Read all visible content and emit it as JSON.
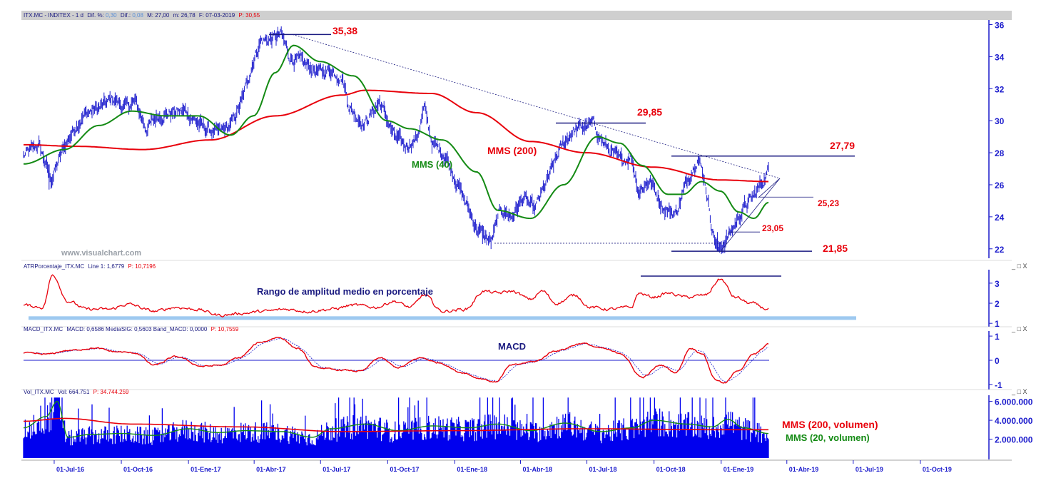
{
  "header": {
    "symbol_text": "ITX.MC - INDITEX - 1 d",
    "dif_pct_label": "Dif. %:",
    "dif_pct_value": "0,30",
    "dif_label": "Dif.:",
    "dif_value": "0,08",
    "max_text": "M: 27,00",
    "min_text": "m: 26,78",
    "date_text": "F: 07-03-2019",
    "price_label": "P: 30,55"
  },
  "watermark": "www.visualchart.com",
  "panels": {
    "atr_header_name": "ATRPorcentaje_ITX.MC",
    "atr_header_line": "Line 1: 1,6779",
    "atr_header_p": "P: 10,7196",
    "macd_header_name": "MACD_ITX.MC",
    "macd_header_vals": "MACD: 0,6586 MediaSIG: 0,5603 Band_MACD: 0,0000",
    "macd_header_p": "P: 10,7559",
    "vol_header_name": "Vol_ITX.MC",
    "vol_header_vals": "Vol: 664.751",
    "vol_header_p": "P: 34.744.259",
    "window_buttons": "_ □ X"
  },
  "annotations": {
    "high_label": "35,38",
    "mid_high_label": "29,85",
    "recent_high_label": "27,79",
    "support_label": "25,23",
    "low_mid_label": "23,05",
    "low_label": "21,85",
    "mms200": "MMS (200)",
    "mms40": "MMS (40)",
    "atr_title": "Rango de amplitud medio en porcentaje",
    "macd_title": "MACD",
    "vol_mms200": "MMS (200, volumen)",
    "vol_mms20": "MMS (20, volumen)"
  },
  "colors": {
    "price": "#1a1acc",
    "ma200": "#e8000b",
    "ma40": "#138a13",
    "volume": "#0000ee",
    "axis": "#1a1acc",
    "highlight_bar": "#9ec9f0"
  },
  "chart_data": {
    "type": "line",
    "x_axis_labels": [
      "01-Jul-16",
      "01-Oct-16",
      "01-Ene-17",
      "01-Abr-17",
      "01-Jul-17",
      "01-Oct-17",
      "01-Ene-18",
      "01-Abr-18",
      "01-Jul-18",
      "01-Oct-18",
      "01-Ene-19",
      "01-Abr-19",
      "01-Jul-19",
      "01-Oct-19"
    ],
    "main": {
      "ylim": [
        21.5,
        36.2
      ],
      "y_ticks": [
        22,
        24,
        26,
        28,
        30,
        32,
        34,
        36
      ],
      "price_anchors": [
        [
          "2016-05-20",
          27.8
        ],
        [
          "2016-06-10",
          28.5
        ],
        [
          "2016-06-27",
          26.3
        ],
        [
          "2016-07-15",
          28.4
        ],
        [
          "2016-08-01",
          29.8
        ],
        [
          "2016-08-15",
          30.5
        ],
        [
          "2016-09-01",
          30.8
        ],
        [
          "2016-09-20",
          31.4
        ],
        [
          "2016-10-05",
          30.8
        ],
        [
          "2016-10-20",
          31.2
        ],
        [
          "2016-11-04",
          29.5
        ],
        [
          "2016-11-20",
          30.3
        ],
        [
          "2016-12-10",
          30.5
        ],
        [
          "2016-12-28",
          30.6
        ],
        [
          "2017-01-20",
          29.6
        ],
        [
          "2017-02-10",
          29.2
        ],
        [
          "2017-02-28",
          29.7
        ],
        [
          "2017-03-15",
          31.2
        ],
        [
          "2017-03-31",
          33.8
        ],
        [
          "2017-04-10",
          35.0
        ],
        [
          "2017-04-25",
          35.1
        ],
        [
          "2017-05-08",
          35.38
        ],
        [
          "2017-05-20",
          34.0
        ],
        [
          "2017-06-10",
          33.5
        ],
        [
          "2017-06-30",
          33.0
        ],
        [
          "2017-07-15",
          33.2
        ],
        [
          "2017-07-31",
          32.7
        ],
        [
          "2017-08-10",
          30.8
        ],
        [
          "2017-08-30",
          29.8
        ],
        [
          "2017-09-20",
          31.2
        ],
        [
          "2017-10-10",
          29.0
        ],
        [
          "2017-10-25",
          28.4
        ],
        [
          "2017-11-10",
          28.9
        ],
        [
          "2017-11-20",
          30.8
        ],
        [
          "2017-12-01",
          28.6
        ],
        [
          "2017-12-20",
          27.8
        ],
        [
          "2018-01-10",
          25.5
        ],
        [
          "2018-02-01",
          23.2
        ],
        [
          "2018-02-20",
          22.4
        ],
        [
          "2018-03-05",
          24.5
        ],
        [
          "2018-03-20",
          24.0
        ],
        [
          "2018-04-05",
          25.2
        ],
        [
          "2018-04-20",
          24.4
        ],
        [
          "2018-05-10",
          26.5
        ],
        [
          "2018-05-25",
          28.2
        ],
        [
          "2018-06-10",
          29.3
        ],
        [
          "2018-06-25",
          29.6
        ],
        [
          "2018-07-10",
          29.8
        ],
        [
          "2018-07-25",
          28.5
        ],
        [
          "2018-08-15",
          27.5
        ],
        [
          "2018-08-31",
          27.8
        ],
        [
          "2018-09-10",
          25.6
        ],
        [
          "2018-09-25",
          26.3
        ],
        [
          "2018-10-15",
          24.5
        ],
        [
          "2018-10-31",
          24.2
        ],
        [
          "2018-11-15",
          26.2
        ],
        [
          "2018-11-30",
          27.79
        ],
        [
          "2018-12-10",
          26.2
        ],
        [
          "2018-12-20",
          23.2
        ],
        [
          "2018-12-28",
          21.85
        ],
        [
          "2019-01-15",
          23.1
        ],
        [
          "2019-01-31",
          24.5
        ],
        [
          "2019-02-15",
          25.3
        ],
        [
          "2019-03-01",
          26.4
        ],
        [
          "2019-03-07",
          26.9
        ]
      ],
      "mma40_anchors": [
        [
          "2016-05-20",
          27.3
        ],
        [
          "2016-07-15",
          28.2
        ],
        [
          "2016-08-31",
          29.7
        ],
        [
          "2016-10-15",
          30.6
        ],
        [
          "2016-12-01",
          30.3
        ],
        [
          "2017-01-15",
          30.3
        ],
        [
          "2017-02-28",
          29.1
        ],
        [
          "2017-03-31",
          30.3
        ],
        [
          "2017-04-30",
          33.0
        ],
        [
          "2017-05-25",
          34.7
        ],
        [
          "2017-06-30",
          33.7
        ],
        [
          "2017-08-15",
          32.8
        ],
        [
          "2017-09-30",
          30.0
        ],
        [
          "2017-10-31",
          29.5
        ],
        [
          "2017-12-15",
          28.8
        ],
        [
          "2018-01-31",
          26.8
        ],
        [
          "2018-03-01",
          24.4
        ],
        [
          "2018-04-15",
          23.9
        ],
        [
          "2018-05-30",
          26.0
        ],
        [
          "2018-07-15",
          29.0
        ],
        [
          "2018-08-15",
          28.6
        ],
        [
          "2018-09-15",
          27.2
        ],
        [
          "2018-10-20",
          25.4
        ],
        [
          "2018-11-10",
          25.4
        ],
        [
          "2018-12-05",
          26.2
        ],
        [
          "2018-12-31",
          25.6
        ],
        [
          "2019-01-25",
          24.3
        ],
        [
          "2019-02-15",
          23.9
        ],
        [
          "2019-03-07",
          24.9
        ]
      ],
      "mma200_anchors": [
        [
          "2016-05-20",
          28.5
        ],
        [
          "2016-08-01",
          28.4
        ],
        [
          "2016-10-31",
          28.2
        ],
        [
          "2017-01-31",
          28.8
        ],
        [
          "2017-04-30",
          30.3
        ],
        [
          "2017-07-31",
          31.6
        ],
        [
          "2017-08-31",
          31.9
        ],
        [
          "2017-11-30",
          31.7
        ],
        [
          "2018-01-31",
          30.5
        ],
        [
          "2018-04-15",
          28.7
        ],
        [
          "2018-06-30",
          28.0
        ],
        [
          "2018-09-30",
          27.1
        ],
        [
          "2018-12-31",
          26.3
        ],
        [
          "2019-03-07",
          26.2
        ]
      ]
    },
    "atr": {
      "ylim": [
        0.9,
        3.6
      ],
      "y_ticks": [
        1,
        2,
        3
      ],
      "anchors": [
        [
          "2016-05-20",
          1.9
        ],
        [
          "2016-06-15",
          1.8
        ],
        [
          "2016-06-29",
          3.4
        ],
        [
          "2016-07-20",
          2.1
        ],
        [
          "2016-08-15",
          1.7
        ],
        [
          "2016-09-15",
          1.7
        ],
        [
          "2016-10-10",
          1.95
        ],
        [
          "2016-11-15",
          1.6
        ],
        [
          "2016-12-15",
          1.8
        ],
        [
          "2017-01-10",
          1.7
        ],
        [
          "2017-02-15",
          1.4
        ],
        [
          "2017-03-15",
          1.5
        ],
        [
          "2017-04-15",
          1.6
        ],
        [
          "2017-05-15",
          1.7
        ],
        [
          "2017-06-15",
          1.6
        ],
        [
          "2017-07-15",
          1.7
        ],
        [
          "2017-08-15",
          1.9
        ],
        [
          "2017-09-15",
          1.8
        ],
        [
          "2017-10-10",
          2.1
        ],
        [
          "2017-11-01",
          1.8
        ],
        [
          "2017-11-20",
          2.4
        ],
        [
          "2017-12-15",
          1.6
        ],
        [
          "2018-01-15",
          1.7
        ],
        [
          "2018-02-10",
          2.6
        ],
        [
          "2018-03-01",
          2.5
        ],
        [
          "2018-03-20",
          2.6
        ],
        [
          "2018-04-15",
          2.2
        ],
        [
          "2018-05-01",
          2.6
        ],
        [
          "2018-05-20",
          2.0
        ],
        [
          "2018-06-15",
          2.4
        ],
        [
          "2018-07-05",
          1.8
        ],
        [
          "2018-08-01",
          1.7
        ],
        [
          "2018-08-31",
          1.8
        ],
        [
          "2018-09-10",
          2.5
        ],
        [
          "2018-09-30",
          2.3
        ],
        [
          "2018-10-20",
          2.5
        ],
        [
          "2018-11-15",
          2.3
        ],
        [
          "2018-12-10",
          2.4
        ],
        [
          "2018-12-31",
          3.2
        ],
        [
          "2019-01-20",
          2.3
        ],
        [
          "2019-02-10",
          2.0
        ],
        [
          "2019-03-07",
          1.7
        ]
      ]
    },
    "macd": {
      "ylim": [
        -1.15,
        1.15
      ],
      "y_ticks": [
        -1,
        0,
        1
      ],
      "anchors": [
        [
          "2016-05-20",
          0.3
        ],
        [
          "2016-06-20",
          0.25
        ],
        [
          "2016-07-20",
          0.4
        ],
        [
          "2016-08-25",
          0.5
        ],
        [
          "2016-09-25",
          0.35
        ],
        [
          "2016-10-20",
          0.3
        ],
        [
          "2016-11-15",
          -0.2
        ],
        [
          "2016-12-15",
          0.15
        ],
        [
          "2017-01-20",
          -0.25
        ],
        [
          "2017-02-15",
          -0.2
        ],
        [
          "2017-03-10",
          0.1
        ],
        [
          "2017-04-10",
          0.75
        ],
        [
          "2017-05-05",
          0.95
        ],
        [
          "2017-05-30",
          0.5
        ],
        [
          "2017-06-25",
          -0.3
        ],
        [
          "2017-07-25",
          -0.4
        ],
        [
          "2017-08-25",
          -0.45
        ],
        [
          "2017-09-20",
          0.1
        ],
        [
          "2017-10-15",
          -0.3
        ],
        [
          "2017-11-15",
          0.1
        ],
        [
          "2017-12-10",
          -0.1
        ],
        [
          "2018-01-10",
          -0.5
        ],
        [
          "2018-02-05",
          -0.75
        ],
        [
          "2018-02-25",
          -0.9
        ],
        [
          "2018-03-20",
          -0.2
        ],
        [
          "2018-04-20",
          -0.05
        ],
        [
          "2018-05-20",
          0.4
        ],
        [
          "2018-06-25",
          0.7
        ],
        [
          "2018-07-20",
          0.5
        ],
        [
          "2018-08-15",
          0.3
        ],
        [
          "2018-09-15",
          -0.7
        ],
        [
          "2018-10-10",
          -0.2
        ],
        [
          "2018-10-31",
          -0.5
        ],
        [
          "2018-11-20",
          0.5
        ],
        [
          "2018-12-05",
          0.3
        ],
        [
          "2018-12-25",
          -0.8
        ],
        [
          "2019-01-05",
          -0.95
        ],
        [
          "2019-01-25",
          -0.4
        ],
        [
          "2019-02-15",
          0.25
        ],
        [
          "2019-03-07",
          0.66
        ]
      ]
    },
    "volume": {
      "ylim": [
        0,
        6500000
      ],
      "y_ticks": [
        2000000,
        4000000,
        6000000
      ],
      "y_tick_labels": [
        "2.000.000",
        "4.000.000",
        "6.000.000"
      ],
      "ma20_anchors": [
        [
          "2016-05-20",
          3200000
        ],
        [
          "2016-06-20",
          4400000
        ],
        [
          "2016-07-05",
          6000000
        ],
        [
          "2016-07-20",
          2200000
        ],
        [
          "2016-08-20",
          2500000
        ],
        [
          "2016-10-01",
          2600000
        ],
        [
          "2016-11-15",
          2400000
        ],
        [
          "2017-01-01",
          3100000
        ],
        [
          "2017-02-10",
          2700000
        ],
        [
          "2017-03-20",
          2900000
        ],
        [
          "2017-05-10",
          2800000
        ],
        [
          "2017-06-20",
          2200000
        ],
        [
          "2017-07-15",
          3100000
        ],
        [
          "2017-09-01",
          3600000
        ],
        [
          "2017-10-15",
          2900000
        ],
        [
          "2017-12-01",
          3400000
        ],
        [
          "2018-01-20",
          3200000
        ],
        [
          "2018-03-01",
          3600000
        ],
        [
          "2018-04-15",
          2900000
        ],
        [
          "2018-06-01",
          3700000
        ],
        [
          "2018-07-20",
          2800000
        ],
        [
          "2018-09-01",
          3200000
        ],
        [
          "2018-10-01",
          4000000
        ],
        [
          "2018-11-15",
          3600000
        ],
        [
          "2018-12-20",
          3300000
        ],
        [
          "2019-01-10",
          4100000
        ],
        [
          "2019-02-01",
          3200000
        ],
        [
          "2019-03-07",
          2600000
        ]
      ],
      "ma200_anchors": [
        [
          "2016-05-20",
          3900000
        ],
        [
          "2016-07-15",
          4200000
        ],
        [
          "2016-10-15",
          3600000
        ],
        [
          "2017-03-15",
          3300000
        ],
        [
          "2017-07-31",
          2800000
        ],
        [
          "2017-12-31",
          2900000
        ],
        [
          "2018-06-30",
          3100000
        ],
        [
          "2018-12-31",
          3000000
        ],
        [
          "2019-03-07",
          3000000
        ]
      ]
    }
  }
}
